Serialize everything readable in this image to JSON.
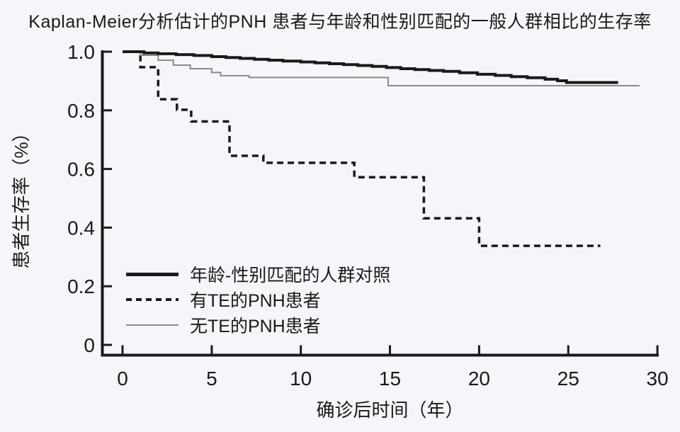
{
  "colors": {
    "background": "#f4f6f9",
    "axis": "#1a1a1a",
    "control_line": "#1a1a1a",
    "te_line": "#1a1a1a",
    "no_te_line": "#8a8a8a"
  },
  "legend": {
    "items": [
      {
        "label": "年龄-性别匹配的人群对照",
        "style": "solid-thick"
      },
      {
        "label": "有TE的PNH患者",
        "style": "dashed"
      },
      {
        "label": "无TE的PNH患者",
        "style": "solid-thin"
      }
    ]
  },
  "chart_data": {
    "type": "line",
    "subtype": "kaplan-meier-step",
    "title": "Kaplan-Meier分析估计的PNH 患者与年龄和性别匹配的一般人群相比的生存率",
    "xlabel": "确诊后时间（年）",
    "ylabel": "患者生存率（%）",
    "xlim": [
      0,
      30
    ],
    "ylim": [
      0,
      1.0
    ],
    "xticks": [
      0,
      5,
      10,
      15,
      20,
      25,
      30
    ],
    "xtick_labels": [
      "0",
      "5",
      "10",
      "15",
      "20",
      "25",
      "30"
    ],
    "yticks": [
      1.0,
      0.8,
      0.6,
      0.4,
      0.2,
      0
    ],
    "ytick_labels": [
      "1.0",
      "0.8",
      "0.6",
      "0.4",
      "0.2",
      "0"
    ],
    "grid": false,
    "legend_position": "inside-bottom-left",
    "series": [
      {
        "name": "有TE的PNH患者",
        "style": "dashed",
        "color": "#1a1a1a",
        "stroke_width": 3.5,
        "dash": "9 6",
        "end_t": 26.8,
        "points": [
          [
            0,
            1.0
          ],
          [
            1.0,
            0.947
          ],
          [
            2.0,
            0.838
          ],
          [
            3.05,
            0.802
          ],
          [
            3.85,
            0.762
          ],
          [
            6.0,
            0.645
          ],
          [
            7.9,
            0.621
          ],
          [
            13.0,
            0.572
          ],
          [
            16.9,
            0.432
          ],
          [
            20.0,
            0.338
          ]
        ]
      },
      {
        "name": "无TE的PNH患者",
        "style": "solid-thin",
        "color": "#8a8a8a",
        "stroke_width": 2,
        "dash": "",
        "end_t": 29.0,
        "points": [
          [
            0,
            1.0
          ],
          [
            1.0,
            0.988
          ],
          [
            2.0,
            0.971
          ],
          [
            2.85,
            0.954
          ],
          [
            3.8,
            0.942
          ],
          [
            5.0,
            0.929
          ],
          [
            5.5,
            0.918
          ],
          [
            7.1,
            0.912
          ],
          [
            14.9,
            0.884
          ]
        ]
      },
      {
        "name": "年龄-性别匹配的人群对照",
        "style": "solid-thick",
        "color": "#1a1a1a",
        "stroke_width": 4,
        "dash": "",
        "end_t": 27.8,
        "points": [
          [
            0,
            1.0
          ],
          [
            1.2,
            0.996
          ],
          [
            2,
            0.993
          ],
          [
            3,
            0.99
          ],
          [
            4,
            0.987
          ],
          [
            5,
            0.983
          ],
          [
            5.8,
            0.98
          ],
          [
            6.6,
            0.977
          ],
          [
            7.4,
            0.974
          ],
          [
            8.2,
            0.971
          ],
          [
            9.0,
            0.968
          ],
          [
            10.0,
            0.965
          ],
          [
            10.8,
            0.962
          ],
          [
            11.6,
            0.959
          ],
          [
            12.4,
            0.956
          ],
          [
            13.2,
            0.953
          ],
          [
            14.0,
            0.95
          ],
          [
            14.8,
            0.946
          ],
          [
            15.6,
            0.942
          ],
          [
            16.4,
            0.939
          ],
          [
            17.2,
            0.936
          ],
          [
            18.0,
            0.933
          ],
          [
            18.9,
            0.928
          ],
          [
            19.9,
            0.923
          ],
          [
            20.9,
            0.919
          ],
          [
            21.8,
            0.915
          ],
          [
            22.7,
            0.911
          ],
          [
            23.7,
            0.906
          ],
          [
            24.4,
            0.901
          ],
          [
            24.9,
            0.895
          ]
        ]
      }
    ]
  }
}
